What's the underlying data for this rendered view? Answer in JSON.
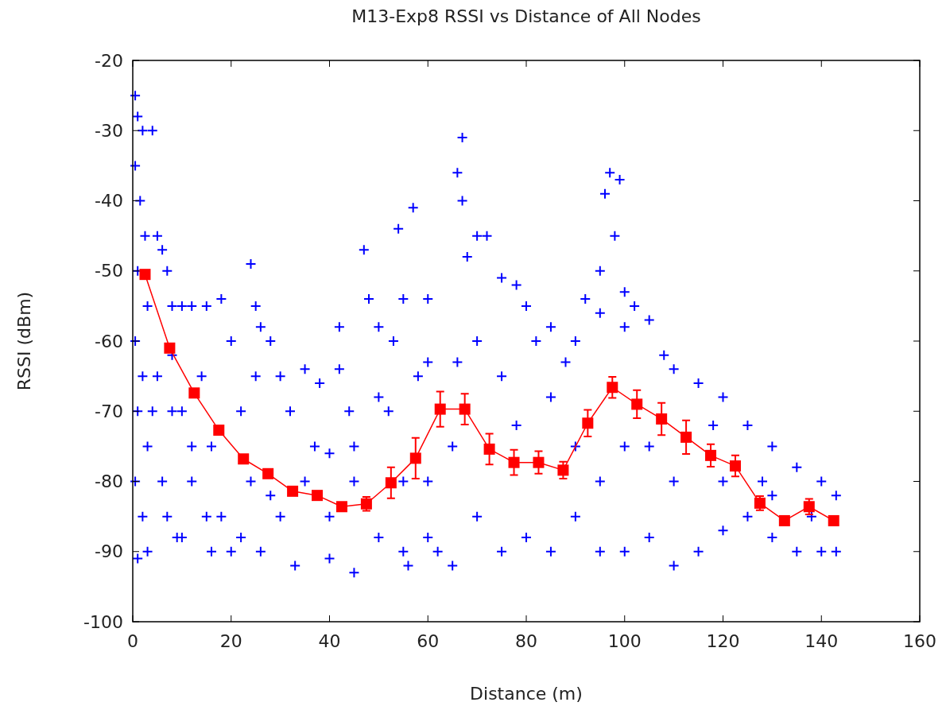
{
  "chart_data": {
    "type": "scatter",
    "title": "M13-Exp8 RSSI vs Distance of All Nodes",
    "xlabel": "Distance (m)",
    "ylabel": "RSSI (dBm)",
    "xlim": [
      0,
      160
    ],
    "xticks": [
      0,
      20,
      40,
      60,
      80,
      100,
      120,
      140,
      160
    ],
    "ylim": [
      -100,
      -20
    ],
    "yticks": [
      -100,
      -90,
      -80,
      -70,
      -60,
      -50,
      -40,
      -30,
      -20
    ],
    "grid": false,
    "series": [
      {
        "color": "#0000ff",
        "marker": "cross",
        "x": [
          0.5,
          1,
          0.5,
          1.5,
          1,
          0.5,
          1,
          0.5,
          1,
          2,
          2.5,
          3,
          2,
          3,
          2,
          4,
          5,
          6,
          7,
          8,
          10,
          5,
          8,
          6,
          10,
          7,
          12,
          15,
          18,
          20,
          14,
          16,
          12,
          18,
          20,
          22,
          24,
          25,
          26,
          25,
          24,
          26,
          28,
          30,
          32,
          30,
          33,
          35,
          38,
          37,
          40,
          40,
          42,
          44,
          45,
          45,
          47,
          48,
          50,
          50,
          52,
          54,
          55,
          55,
          57,
          60,
          60,
          60,
          62,
          67,
          66,
          67,
          68,
          70,
          72,
          75,
          78,
          80,
          82,
          85,
          88,
          90,
          92,
          95,
          97,
          96,
          99,
          98,
          95,
          100,
          102,
          100,
          105,
          108,
          110,
          115,
          120,
          125,
          130,
          135,
          140,
          143,
          143,
          140,
          135,
          130,
          125,
          120,
          115,
          110,
          105,
          100,
          95,
          90,
          85,
          80,
          75,
          70,
          65,
          60,
          56,
          65,
          75,
          85,
          90,
          100,
          110,
          120,
          130,
          66,
          70,
          58,
          53,
          50,
          42,
          40,
          35,
          28,
          22,
          15,
          12,
          10,
          8,
          4,
          3,
          9,
          16,
          45,
          55,
          78,
          95,
          105,
          118,
          128,
          138
        ],
        "values": [
          -25,
          -28,
          -35,
          -40,
          -50,
          -60,
          -70,
          -80,
          -91,
          -30,
          -45,
          -55,
          -65,
          -75,
          -85,
          -30,
          -45,
          -47,
          -50,
          -55,
          -55,
          -65,
          -70,
          -80,
          -88,
          -85,
          -55,
          -55,
          -54,
          -60,
          -65,
          -75,
          -80,
          -85,
          -90,
          -70,
          -49,
          -55,
          -58,
          -65,
          -80,
          -90,
          -60,
          -65,
          -70,
          -85,
          -92,
          -64,
          -66,
          -75,
          -85,
          -91,
          -64,
          -70,
          -80,
          -93,
          -47,
          -54,
          -58,
          -88,
          -70,
          -44,
          -54,
          -90,
          -41,
          -54,
          -63,
          -80,
          -90,
          -31,
          -36,
          -40,
          -48,
          -45,
          -45,
          -51,
          -52,
          -55,
          -60,
          -58,
          -63,
          -60,
          -54,
          -56,
          -36,
          -39,
          -37,
          -45,
          -50,
          -53,
          -55,
          -58,
          -57,
          -62,
          -64,
          -66,
          -68,
          -72,
          -75,
          -78,
          -80,
          -82,
          -90,
          -90,
          -90,
          -88,
          -85,
          -87,
          -90,
          -92,
          -88,
          -90,
          -90,
          -85,
          -90,
          -88,
          -90,
          -85,
          -92,
          -88,
          -92,
          -75,
          -65,
          -68,
          -75,
          -75,
          -80,
          -80,
          -82,
          -63,
          -60,
          -65,
          -60,
          -68,
          -58,
          -76,
          -80,
          -82,
          -88,
          -85,
          -75,
          -70,
          -62,
          -70,
          -90,
          -88,
          -90,
          -75,
          -80,
          -72,
          -80,
          -75,
          -72,
          -80,
          -85
        ]
      },
      {
        "type": "line",
        "color": "#ff0000",
        "marker": "square",
        "line_style": "solid",
        "x": [
          2.5,
          7.5,
          12.5,
          17.5,
          22.5,
          27.5,
          32.5,
          37.5,
          42.5,
          47.5,
          52.5,
          57.5,
          62.5,
          67.5,
          72.5,
          77.5,
          82.5,
          87.5,
          92.5,
          97.5,
          102.5,
          107.5,
          112.5,
          117.5,
          122.5,
          127.5,
          132.5,
          137.5,
          142.5
        ],
        "values": [
          -50.5,
          -61.0,
          -67.4,
          -72.7,
          -76.8,
          -78.9,
          -81.4,
          -82.0,
          -83.6,
          -83.2,
          -80.2,
          -76.7,
          -69.7,
          -69.7,
          -75.4,
          -77.3,
          -77.3,
          -78.4,
          -71.7,
          -66.6,
          -69.0,
          -71.1,
          -73.7,
          -76.3,
          -77.8,
          -83.1,
          -85.6,
          -83.6,
          -85.6
        ],
        "errors": [
          null,
          null,
          null,
          null,
          null,
          null,
          null,
          null,
          null,
          1,
          2.2,
          2.9,
          2.5,
          2.2,
          2.2,
          1.8,
          1.6,
          1.2,
          1.9,
          1.5,
          2,
          2.3,
          2.4,
          1.6,
          1.5,
          1,
          null,
          1.1,
          null
        ]
      }
    ]
  }
}
